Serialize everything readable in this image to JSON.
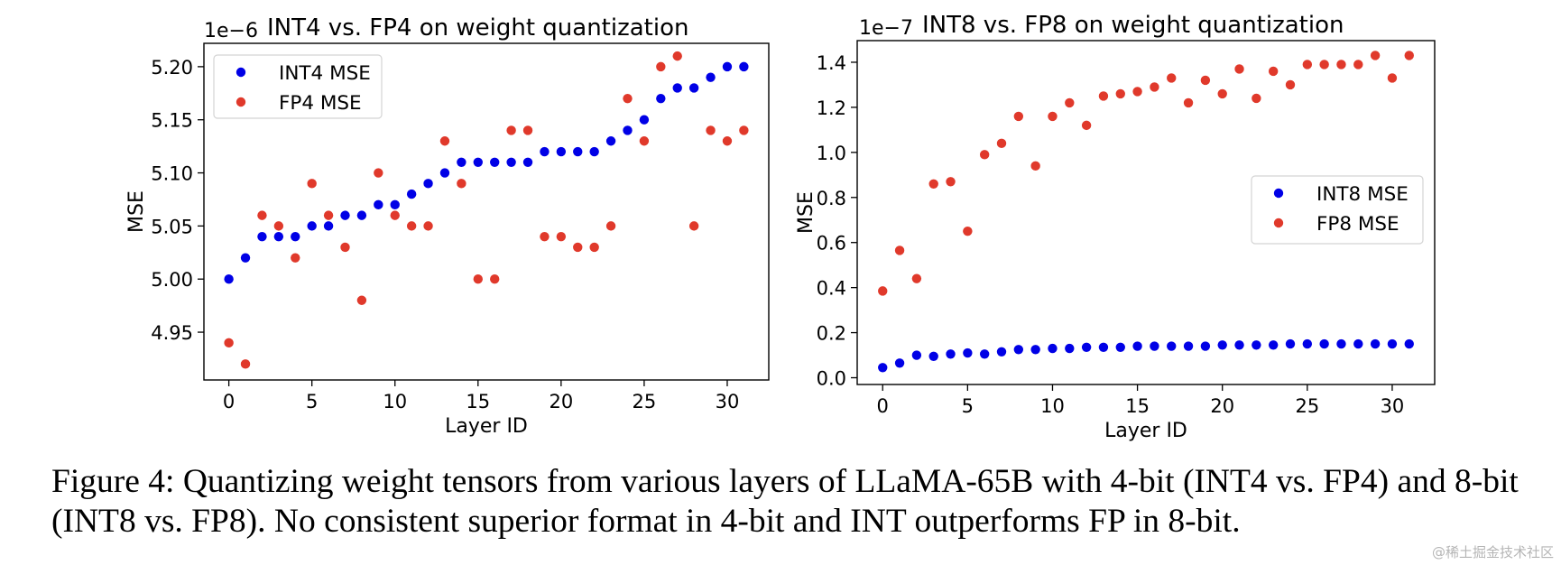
{
  "chart_data": [
    {
      "type": "scatter",
      "title": "INT4 vs. FP4 on weight quantization",
      "offset_label": "1e−6",
      "xlabel": "Layer ID",
      "ylabel": "MSE",
      "xlim": [
        -1.5,
        32.5
      ],
      "ylim": [
        4.905,
        5.222
      ],
      "xticks": [
        0,
        5,
        10,
        15,
        20,
        25,
        30
      ],
      "yticks": [
        4.95,
        5.0,
        5.05,
        5.1,
        5.15,
        5.2
      ],
      "ytick_labels": [
        "4.95",
        "5.00",
        "5.05",
        "5.10",
        "5.15",
        "5.20"
      ],
      "grid": false,
      "legend_position": "top-left",
      "x": [
        0,
        1,
        2,
        3,
        4,
        5,
        6,
        7,
        8,
        9,
        10,
        11,
        12,
        13,
        14,
        15,
        16,
        17,
        18,
        19,
        20,
        21,
        22,
        23,
        24,
        25,
        26,
        27,
        28,
        29,
        30,
        31
      ],
      "series": [
        {
          "name": "INT4 MSE",
          "color": "#0000e6",
          "values": [
            5.0,
            5.02,
            5.04,
            5.04,
            5.04,
            5.05,
            5.05,
            5.06,
            5.06,
            5.07,
            5.07,
            5.08,
            5.09,
            5.1,
            5.11,
            5.11,
            5.11,
            5.11,
            5.11,
            5.12,
            5.12,
            5.12,
            5.12,
            5.13,
            5.14,
            5.15,
            5.17,
            5.18,
            5.18,
            5.19,
            5.2,
            5.2
          ]
        },
        {
          "name": "FP4 MSE",
          "color": "#e0392b",
          "values": [
            4.94,
            4.92,
            5.06,
            5.05,
            5.02,
            5.09,
            5.06,
            5.03,
            4.98,
            5.1,
            5.06,
            5.05,
            5.05,
            5.13,
            5.09,
            5.0,
            5.0,
            5.14,
            5.14,
            5.04,
            5.04,
            5.03,
            5.03,
            5.05,
            5.17,
            5.13,
            5.2,
            5.21,
            5.05,
            5.14,
            5.13,
            5.14
          ]
        }
      ]
    },
    {
      "type": "scatter",
      "title": "INT8 vs. FP8 on weight quantization",
      "offset_label": "1e−7",
      "xlabel": "Layer ID",
      "ylabel": "MSE",
      "xlim": [
        -1.5,
        32.5
      ],
      "ylim": [
        -0.03,
        1.496
      ],
      "xticks": [
        0,
        5,
        10,
        15,
        20,
        25,
        30
      ],
      "yticks": [
        0.0,
        0.2,
        0.4,
        0.6,
        0.8,
        1.0,
        1.2,
        1.4
      ],
      "ytick_labels": [
        "0.0",
        "0.2",
        "0.4",
        "0.6",
        "0.8",
        "1.0",
        "1.2",
        "1.4"
      ],
      "grid": false,
      "legend_position": "center-right",
      "x": [
        0,
        1,
        2,
        3,
        4,
        5,
        6,
        7,
        8,
        9,
        10,
        11,
        12,
        13,
        14,
        15,
        16,
        17,
        18,
        19,
        20,
        21,
        22,
        23,
        24,
        25,
        26,
        27,
        28,
        29,
        30,
        31
      ],
      "series": [
        {
          "name": "INT8 MSE",
          "color": "#0000e6",
          "values": [
            0.045,
            0.065,
            0.1,
            0.095,
            0.105,
            0.11,
            0.105,
            0.115,
            0.125,
            0.125,
            0.13,
            0.13,
            0.135,
            0.135,
            0.135,
            0.14,
            0.14,
            0.14,
            0.14,
            0.14,
            0.145,
            0.145,
            0.145,
            0.145,
            0.15,
            0.15,
            0.15,
            0.15,
            0.15,
            0.15,
            0.15,
            0.15
          ]
        },
        {
          "name": "FP8 MSE",
          "color": "#e0392b",
          "values": [
            0.385,
            0.565,
            0.44,
            0.86,
            0.87,
            0.65,
            0.99,
            1.04,
            1.16,
            0.94,
            1.16,
            1.22,
            1.12,
            1.25,
            1.26,
            1.27,
            1.29,
            1.33,
            1.22,
            1.32,
            1.26,
            1.37,
            1.24,
            1.36,
            1.3,
            1.39,
            1.39,
            1.39,
            1.39,
            1.43,
            1.33,
            1.43
          ]
        }
      ]
    }
  ],
  "caption": "Figure 4: Quantizing weight tensors from various layers of LLaMA-65B with 4-bit (INT4 vs. FP4) and 8-bit (INT8 vs. FP8). No consistent superior format in 4-bit and INT outperforms FP in 8-bit.",
  "watermark": "@稀土掘金技术社区"
}
